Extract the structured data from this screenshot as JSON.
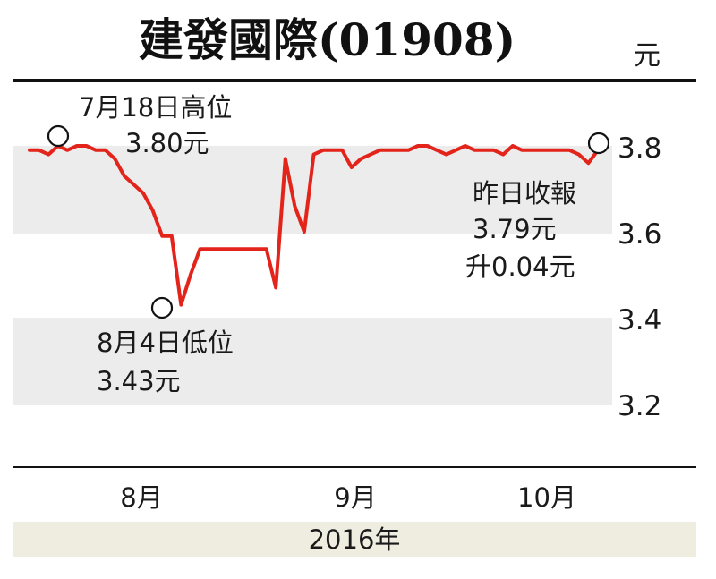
{
  "colors": {
    "line": "#e3241b",
    "band": "#ececec",
    "footer_band": "#efece0",
    "rule": "#111111",
    "text": "#1a1a1a"
  },
  "chart_data": {
    "type": "line",
    "title": "建發國際(01908)",
    "unit": "元",
    "yticks": [
      3.8,
      3.6,
      3.4,
      3.2
    ],
    "ylim": [
      3.1,
      3.9
    ],
    "xticks": [
      "8月",
      "9月",
      "10月"
    ],
    "year_label": "2016年",
    "series": [
      {
        "values": [
          3.79,
          3.79,
          3.78,
          3.8,
          3.79,
          3.8,
          3.8,
          3.79,
          3.79,
          3.77,
          3.73,
          3.71,
          3.69,
          3.65,
          3.59,
          3.59,
          3.43,
          3.5,
          3.56,
          3.56,
          3.56,
          3.56,
          3.56,
          3.56,
          3.56,
          3.56,
          3.47,
          3.77,
          3.66,
          3.6,
          3.78,
          3.79,
          3.79,
          3.79,
          3.75,
          3.77,
          3.78,
          3.79,
          3.79,
          3.79,
          3.79,
          3.8,
          3.8,
          3.79,
          3.78,
          3.79,
          3.8,
          3.79,
          3.79,
          3.79,
          3.78,
          3.8,
          3.79,
          3.79,
          3.79,
          3.79,
          3.79,
          3.79,
          3.78,
          3.76,
          3.79
        ]
      }
    ],
    "annotations": [
      {
        "lines": [
          "7月18日高位",
          "3.80元"
        ]
      },
      {
        "lines": [
          "8月4日低位",
          "3.43元"
        ]
      },
      {
        "lines": [
          "昨日收報",
          "3.79元",
          "升0.04元"
        ]
      }
    ]
  }
}
